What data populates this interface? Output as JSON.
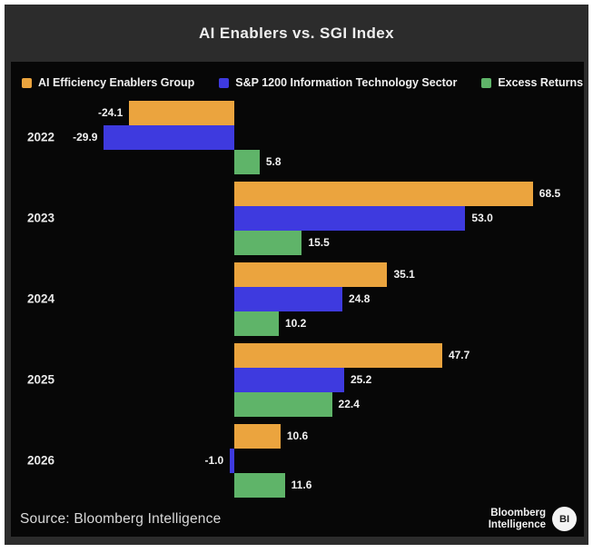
{
  "title": "AI Enablers vs. SGI Index",
  "legend": {
    "items": [
      {
        "label": "AI Efficiency Enablers Group",
        "color": "#eba43e"
      },
      {
        "label": "S&P 1200 Information Technology Sector",
        "color": "#3e3adf"
      },
      {
        "label": "Excess Returns",
        "color": "#5fb469"
      }
    ]
  },
  "chart_data": {
    "type": "bar",
    "orientation": "horizontal",
    "title": "AI Enablers vs. SGI Index",
    "categories": [
      "2022",
      "2023",
      "2024",
      "2025",
      "2026"
    ],
    "series": [
      {
        "name": "AI Efficiency Enablers Group",
        "color": "#eba43e",
        "values": [
          -24.1,
          68.5,
          35.1,
          47.7,
          10.6
        ]
      },
      {
        "name": "S&P 1200 Information Technology Sector",
        "color": "#3e3adf",
        "values": [
          -29.9,
          53.0,
          24.8,
          25.2,
          -1.0
        ]
      },
      {
        "name": "Excess Returns",
        "color": "#5fb469",
        "values": [
          5.8,
          15.5,
          10.2,
          22.4,
          11.6
        ]
      }
    ],
    "xlim": [
      -35,
      78
    ],
    "grid": false,
    "legend_position": "top",
    "value_labels_shown": true
  },
  "footer": {
    "source": "Source: Bloomberg Intelligence",
    "brand": {
      "line1": "Bloomberg",
      "line2": "Intelligence",
      "badge": "BI"
    }
  },
  "colors": {
    "page": "#ffffff",
    "card": "#2c2c2c",
    "panel": "#070707"
  }
}
